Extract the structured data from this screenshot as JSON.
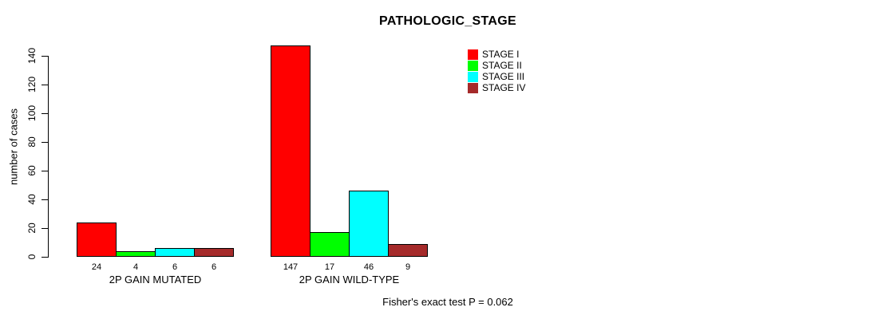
{
  "chart_data": {
    "type": "bar",
    "title": "PATHOLOGIC_STAGE",
    "xlabel": "",
    "ylabel": "number of cases",
    "categories": [
      "2P GAIN MUTATED",
      "2P GAIN WILD-TYPE"
    ],
    "series": [
      {
        "name": "STAGE I",
        "color": "#FF0000",
        "values": [
          24,
          147
        ]
      },
      {
        "name": "STAGE II",
        "color": "#00FF00",
        "values": [
          4,
          17
        ]
      },
      {
        "name": "STAGE III",
        "color": "#00FFFF",
        "values": [
          6,
          46
        ]
      },
      {
        "name": "STAGE IV",
        "color": "#A52A2A",
        "values": [
          6,
          9
        ]
      }
    ],
    "bar_value_labels": [
      [
        24,
        4,
        6,
        6
      ],
      [
        147,
        17,
        46,
        9
      ]
    ],
    "ylim": [
      0,
      140
    ],
    "yticks": [
      0,
      20,
      40,
      60,
      80,
      100,
      120,
      140
    ],
    "grid": false,
    "legend_position": "top-right",
    "legend_entries": [
      "STAGE I",
      "STAGE II",
      "STAGE III",
      "STAGE IV"
    ],
    "annotation": "Fisher's exact test P = 0.062",
    "axis_color": "#000000",
    "background_color": "#FFFFFF"
  }
}
